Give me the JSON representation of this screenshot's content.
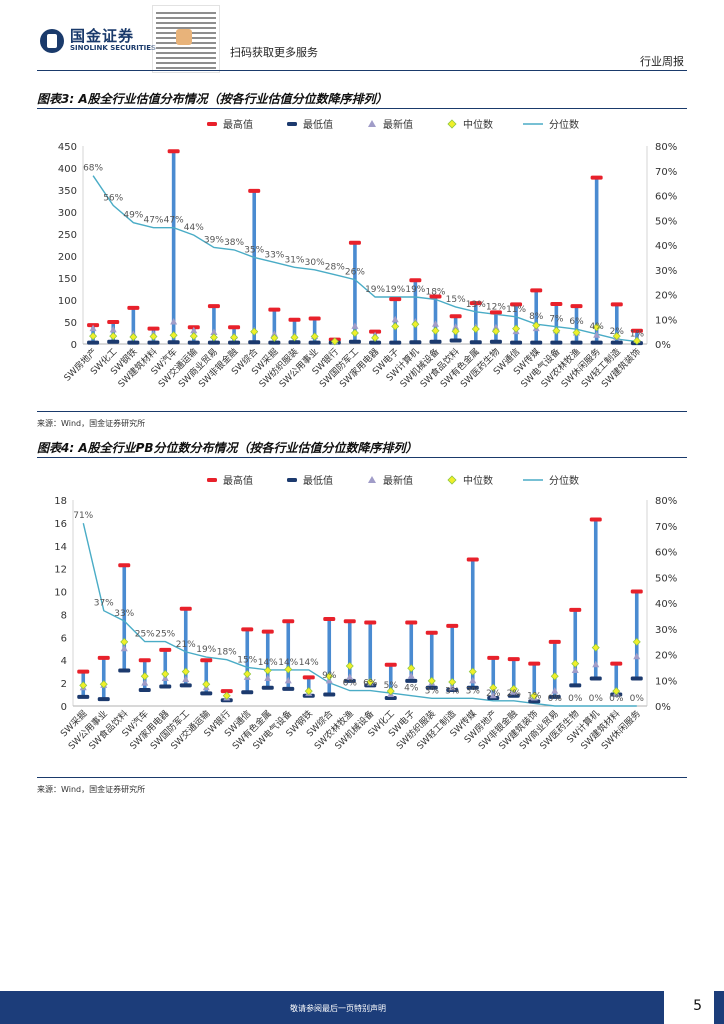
{
  "header": {
    "logo_cn": "国金证券",
    "logo_en": "SINOLINK SECURITIES",
    "scan_text": "扫码获取更多服务",
    "report_type": "行业周报"
  },
  "figures": [
    {
      "title": "图表3: A股全行业估值分布情况（按各行业估值分位数降序排列）",
      "source": "来源：Wind，国金证券研究所"
    },
    {
      "title": "图表4: A股全行业PB分位数分布情况（按各行业估值分位数降序排列）",
      "source": "来源：Wind，国金证券研究所"
    }
  ],
  "legend": {
    "max": "最高值",
    "min": "最低值",
    "latest": "最新值",
    "median": "中位数",
    "pct": "分位数"
  },
  "colors": {
    "max": "#e8212b",
    "min": "#1c3a6e",
    "latest": "#a09cc8",
    "median": "#f0ef2a",
    "median_border": "#8cc63f",
    "bar": "#4a8bd1",
    "pct_line": "#4aacc6",
    "brand": "#1c3d7a"
  },
  "chart_data": [
    {
      "type": "bar",
      "title": "A股全行业估值分布情况（按各行业估值分位数降序排列）",
      "ylim": [
        0,
        450
      ],
      "yticks": [
        0,
        50,
        100,
        150,
        200,
        250,
        300,
        350,
        400,
        450
      ],
      "y2lim": [
        0,
        80
      ],
      "y2ticks": [
        "0%",
        "10%",
        "20%",
        "30%",
        "40%",
        "50%",
        "60%",
        "70%",
        "80%"
      ],
      "categories": [
        "SW房地产",
        "SW化工",
        "SW钢铁",
        "SW建筑材料",
        "SW汽车",
        "SW交通运输",
        "SW商业贸易",
        "SW非银金融",
        "SW综合",
        "SW采掘",
        "SW纺织服装",
        "SW公用事业",
        "SW银行",
        "SW国防军工",
        "SW家用电器",
        "SW电子",
        "SW计算机",
        "SW机械设备",
        "SW食品饮料",
        "SW有色金属",
        "SW医药生物",
        "SW通信",
        "SW传媒",
        "SW电气设备",
        "SW农林牧渔",
        "SW休闲服务",
        "SW轻工制造",
        "SW建筑装饰"
      ],
      "max": [
        43,
        50,
        82,
        35,
        438,
        38,
        86,
        38,
        348,
        78,
        55,
        58,
        10,
        230,
        28,
        102,
        145,
        108,
        63,
        93,
        72,
        90,
        122,
        91,
        86,
        378,
        90,
        30
      ],
      "min": [
        3,
        5,
        3,
        3,
        4,
        3,
        3,
        3,
        4,
        3,
        4,
        3,
        3,
        5,
        3,
        3,
        4,
        5,
        8,
        4,
        5,
        3,
        3,
        3,
        3,
        3,
        3,
        2
      ],
      "latest": [
        35,
        32,
        22,
        22,
        50,
        30,
        26,
        17,
        30,
        22,
        18,
        17,
        5,
        40,
        19,
        55,
        50,
        45,
        38,
        38,
        37,
        28,
        35,
        30,
        25,
        20,
        15,
        8
      ],
      "median": [
        18,
        18,
        16,
        17,
        20,
        18,
        15,
        15,
        28,
        14,
        15,
        17,
        6,
        25,
        14,
        40,
        45,
        30,
        29,
        34,
        29,
        35,
        42,
        30,
        26,
        38,
        18,
        7
      ],
      "percentile": [
        68,
        56,
        49,
        47,
        47,
        44,
        39,
        38,
        35,
        33,
        31,
        30,
        28,
        26,
        19,
        19,
        19,
        18,
        15,
        13,
        12,
        11,
        8,
        7,
        6,
        4,
        2,
        1
      ],
      "percentile_labels": [
        "68%",
        "56%",
        "49%",
        "47%",
        "47%",
        "44%",
        "39%",
        "38%",
        "35%",
        "33%",
        "31%",
        "30%",
        "28%",
        "26%",
        "19%",
        "19%",
        "19%",
        "18%",
        "15%",
        "13%",
        "12%",
        "11%",
        "8%",
        "7%",
        "6%",
        "4%",
        "2%",
        "1%"
      ]
    },
    {
      "type": "bar",
      "title": "A股全行业PB分位数分布情况（按各行业估值分位数降序排列）",
      "ylim": [
        0,
        18
      ],
      "yticks": [
        0,
        2,
        4,
        6,
        8,
        10,
        12,
        14,
        16,
        18
      ],
      "y2lim": [
        0,
        80
      ],
      "y2ticks": [
        "0%",
        "10%",
        "20%",
        "30%",
        "40%",
        "50%",
        "60%",
        "70%",
        "80%"
      ],
      "categories": [
        "SW采掘",
        "SW公用事业",
        "SW食品饮料",
        "SW汽车",
        "SW家用电器",
        "SW国防军工",
        "SW交通运输",
        "SW银行",
        "SW通信",
        "SW有色金属",
        "SW电气设备",
        "SW钢铁",
        "SW综合",
        "SW农林牧渔",
        "SW机械设备",
        "SW化工",
        "SW电子",
        "SW纺织服装",
        "SW轻工制造",
        "SW传媒",
        "SW房地产",
        "SW非银金融",
        "SW建筑装饰",
        "SW商业贸易",
        "SW医药生物",
        "SW计算机",
        "SW建筑材料",
        "SW休闲服务"
      ],
      "max": [
        3.0,
        4.2,
        12.3,
        4.0,
        4.9,
        8.5,
        4.0,
        1.3,
        6.7,
        6.5,
        7.4,
        2.5,
        7.6,
        7.4,
        7.3,
        3.6,
        7.3,
        6.4,
        7.0,
        12.8,
        4.2,
        4.1,
        3.7,
        5.6,
        8.4,
        16.3,
        3.7,
        10.0
      ],
      "min": [
        0.8,
        0.6,
        3.1,
        1.4,
        1.7,
        1.8,
        1.1,
        0.5,
        1.2,
        1.6,
        1.5,
        0.9,
        1.0,
        2.2,
        1.8,
        0.7,
        2.2,
        1.6,
        1.4,
        1.6,
        0.7,
        0.9,
        0.4,
        0.8,
        1.8,
        2.4,
        1.0,
        2.4
      ],
      "latest": [
        1.6,
        1.8,
        5.0,
        2.0,
        2.4,
        2.3,
        1.6,
        0.7,
        2.5,
        2.4,
        2.2,
        1.1,
        2.2,
        2.5,
        2.0,
        1.0,
        2.6,
        2.0,
        1.6,
        2.2,
        0.9,
        1.2,
        0.7,
        1.3,
        3.1,
        3.6,
        1.1,
        4.3
      ],
      "median": [
        1.8,
        1.9,
        5.6,
        2.6,
        2.8,
        3.0,
        1.9,
        0.9,
        2.8,
        3.1,
        3.2,
        1.3,
        2.6,
        3.5,
        2.1,
        1.3,
        3.3,
        2.2,
        2.1,
        3.0,
        1.6,
        1.5,
        0.9,
        2.6,
        3.7,
        5.1,
        1.3,
        5.6
      ],
      "percentile": [
        71,
        37,
        33,
        25,
        25,
        21,
        19,
        18,
        15,
        14,
        14,
        14,
        9,
        6,
        6,
        5,
        4,
        3,
        3,
        3,
        2,
        2,
        1,
        0,
        0,
        0,
        0,
        0
      ],
      "percentile_labels": [
        "71%",
        "37%",
        "33%",
        "25%",
        "25%",
        "21%",
        "19%",
        "18%",
        "15%",
        "14%",
        "14%",
        "14%",
        "9%",
        "6%",
        "6%",
        "5%",
        "4%",
        "3%",
        "3%",
        "3%",
        "2%",
        "2%",
        "1%",
        "0%",
        "0%",
        "0%",
        "0%",
        "0%"
      ]
    }
  ],
  "footer": {
    "disclaimer": "敬请参阅最后一页特别声明",
    "page": "5"
  }
}
